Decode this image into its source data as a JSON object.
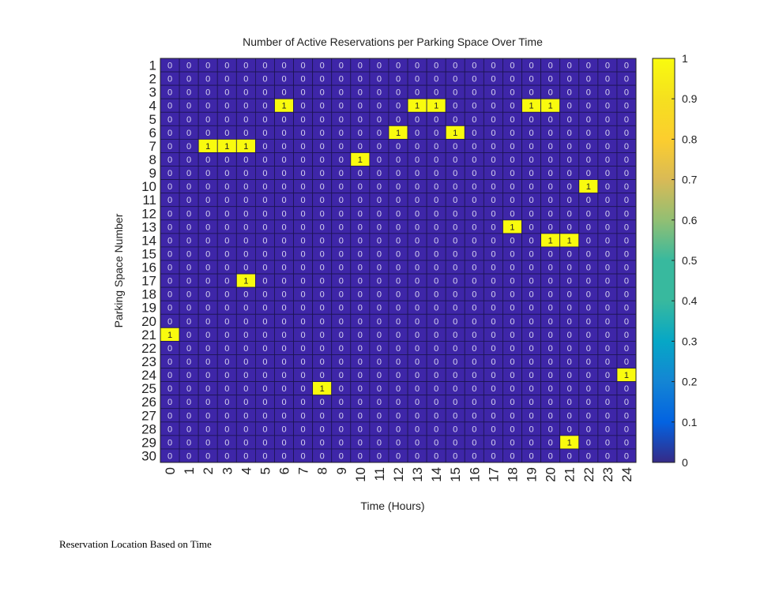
{
  "caption": "Reservation Location Based on Time",
  "chart_data": {
    "type": "heatmap",
    "title": "Number of Active Reservations per Parking Space Over Time",
    "xlabel": "Time (Hours)",
    "ylabel": "Parking Space Number",
    "x": [
      0,
      1,
      2,
      3,
      4,
      5,
      6,
      7,
      8,
      9,
      10,
      11,
      12,
      13,
      14,
      15,
      16,
      17,
      18,
      19,
      20,
      21,
      22,
      23,
      24
    ],
    "y": [
      1,
      2,
      3,
      4,
      5,
      6,
      7,
      8,
      9,
      10,
      11,
      12,
      13,
      14,
      15,
      16,
      17,
      18,
      19,
      20,
      21,
      22,
      23,
      24,
      25,
      26,
      27,
      28,
      29,
      30
    ],
    "default_value": 0,
    "active_cells": [
      {
        "space": 4,
        "hour": 6,
        "value": 1
      },
      {
        "space": 4,
        "hour": 13,
        "value": 1
      },
      {
        "space": 4,
        "hour": 14,
        "value": 1
      },
      {
        "space": 4,
        "hour": 19,
        "value": 1
      },
      {
        "space": 4,
        "hour": 20,
        "value": 1
      },
      {
        "space": 6,
        "hour": 12,
        "value": 1
      },
      {
        "space": 6,
        "hour": 15,
        "value": 1
      },
      {
        "space": 7,
        "hour": 2,
        "value": 1
      },
      {
        "space": 7,
        "hour": 3,
        "value": 1
      },
      {
        "space": 7,
        "hour": 4,
        "value": 1
      },
      {
        "space": 8,
        "hour": 10,
        "value": 1
      },
      {
        "space": 10,
        "hour": 22,
        "value": 1
      },
      {
        "space": 13,
        "hour": 18,
        "value": 1
      },
      {
        "space": 14,
        "hour": 20,
        "value": 1
      },
      {
        "space": 14,
        "hour": 21,
        "value": 1
      },
      {
        "space": 17,
        "hour": 4,
        "value": 1
      },
      {
        "space": 21,
        "hour": 0,
        "value": 1
      },
      {
        "space": 24,
        "hour": 24,
        "value": 1
      },
      {
        "space": 25,
        "hour": 8,
        "value": 1
      },
      {
        "space": 29,
        "hour": 21,
        "value": 1
      }
    ],
    "colorbar": {
      "range": [
        0,
        1
      ],
      "ticks": [
        0,
        0.1,
        0.2,
        0.3,
        0.4,
        0.5,
        0.6,
        0.7,
        0.8,
        0.9,
        1
      ],
      "colormap": "parula",
      "low_color": "#3E26A8",
      "high_color": "#F9FB0E"
    },
    "grid": true
  }
}
